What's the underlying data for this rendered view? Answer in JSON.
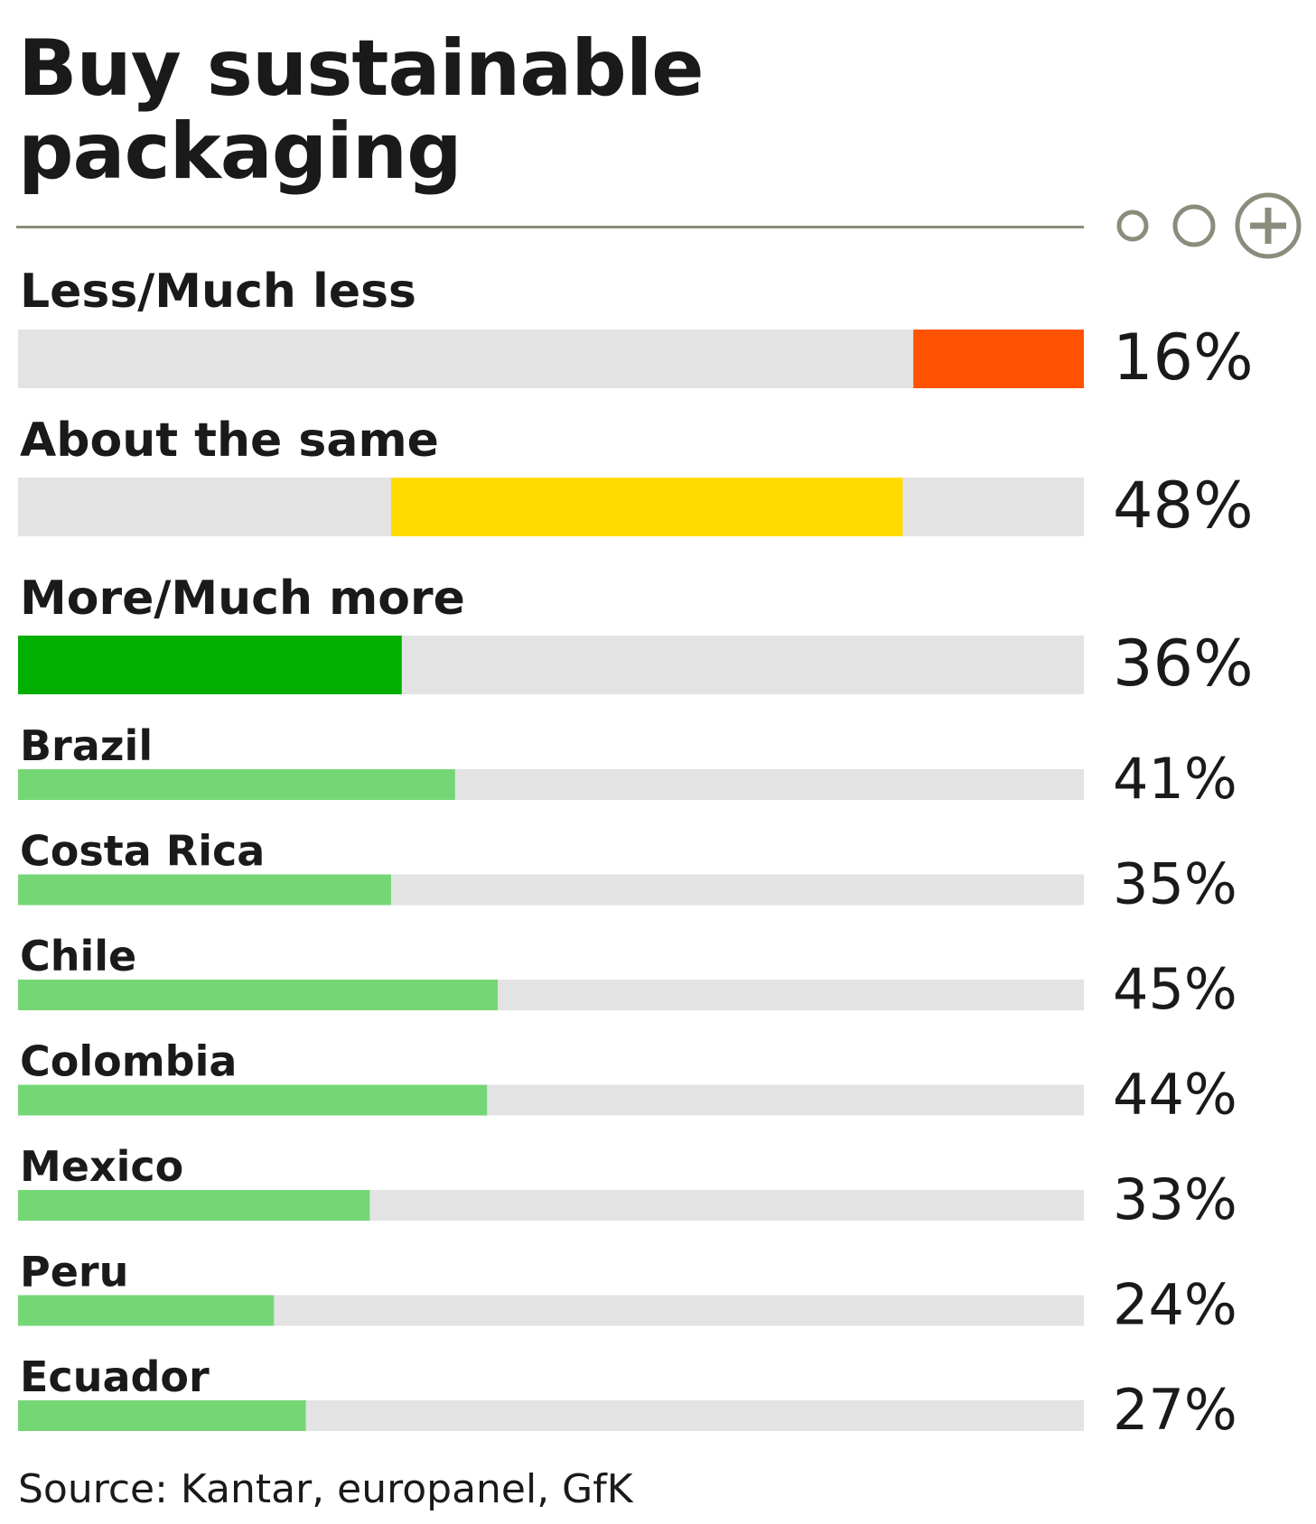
{
  "header": {
    "title": "Buy sustainable packaging"
  },
  "controls": {
    "size_options": [
      {
        "icon": "small-circle-icon"
      },
      {
        "icon": "medium-circle-icon"
      },
      {
        "icon": "plus-circle-icon"
      }
    ]
  },
  "chart_data": {
    "type": "bar",
    "orientation": "horizontal",
    "xlim": [
      0,
      100
    ],
    "grid": false,
    "legend": "none",
    "colors": {
      "track": "#e3e3e3",
      "less": "#ff5200",
      "same": "#ffdb00",
      "more": "#00af00",
      "country": "#75d675",
      "rule": "#8c8c7c"
    },
    "summary": [
      {
        "label": "Less/Much less",
        "value": 16,
        "display": "16%",
        "start": 84,
        "color": "#ff5200"
      },
      {
        "label": "About the same",
        "value": 48,
        "display": "48%",
        "start": 35,
        "color": "#ffdb00"
      },
      {
        "label": "More/Much more",
        "value": 36,
        "display": "36%",
        "start": 0,
        "color": "#00af00"
      }
    ],
    "countries": [
      {
        "label": "Brazil",
        "value": 41,
        "display": "41%"
      },
      {
        "label": "Costa Rica",
        "value": 35,
        "display": "35%"
      },
      {
        "label": "Chile",
        "value": 45,
        "display": "45%"
      },
      {
        "label": "Colombia",
        "value": 44,
        "display": "44%"
      },
      {
        "label": "Mexico",
        "value": 33,
        "display": "33%"
      },
      {
        "label": "Peru",
        "value": 24,
        "display": "24%"
      },
      {
        "label": "Ecuador",
        "value": 27,
        "display": "27%"
      }
    ]
  },
  "footer": {
    "source": "Source: Kantar, europanel, GfK"
  }
}
